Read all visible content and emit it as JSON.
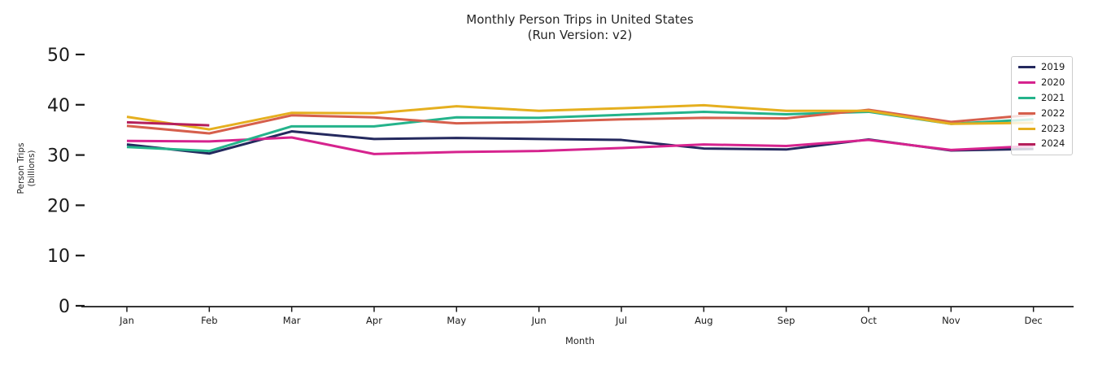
{
  "title": {
    "line1": "Monthly Person Trips in United States",
    "line2": "(Run Version: v2)"
  },
  "axes": {
    "xlabel": "Month",
    "ylabel_line1": "Person Trips",
    "ylabel_line2": "(billions)",
    "y_ticks": [
      0,
      10,
      20,
      30,
      40,
      50
    ],
    "x_ticks": [
      "Jan",
      "Feb",
      "Mar",
      "Apr",
      "May",
      "Jun",
      "Jul",
      "Aug",
      "Sep",
      "Oct",
      "Nov",
      "Dec"
    ]
  },
  "legend": {
    "position": "upper right",
    "items": [
      {
        "label": "2019",
        "color": "#24295e"
      },
      {
        "label": "2020",
        "color": "#d6238e"
      },
      {
        "label": "2021",
        "color": "#24b38b"
      },
      {
        "label": "2022",
        "color": "#d65f4c"
      },
      {
        "label": "2023",
        "color": "#e5af1f"
      },
      {
        "label": "2024",
        "color": "#b51f5b"
      }
    ]
  },
  "chart_data": {
    "type": "line",
    "title": "Monthly Person Trips in United States (Run Version: v2)",
    "xlabel": "Month",
    "ylabel": "Person Trips (billions)",
    "ylim": [
      0,
      50
    ],
    "grid": false,
    "legend_position": "upper right",
    "categories": [
      "Jan",
      "Feb",
      "Mar",
      "Apr",
      "May",
      "Jun",
      "Jul",
      "Aug",
      "Sep",
      "Oct",
      "Nov",
      "Dec"
    ],
    "series": [
      {
        "name": "2019",
        "color": "#24295e",
        "values": [
          32.1,
          30.3,
          34.7,
          33.2,
          33.4,
          33.2,
          33.0,
          31.3,
          31.1,
          33.1,
          30.9,
          31.2
        ]
      },
      {
        "name": "2020",
        "color": "#d6238e",
        "values": [
          32.8,
          32.7,
          33.5,
          30.2,
          30.6,
          30.8,
          31.4,
          32.1,
          31.8,
          33.0,
          31.0,
          31.8
        ]
      },
      {
        "name": "2021",
        "color": "#24b38b",
        "values": [
          31.6,
          30.8,
          35.7,
          35.7,
          37.5,
          37.4,
          38.0,
          38.6,
          38.1,
          38.6,
          36.2,
          37.1
        ]
      },
      {
        "name": "2022",
        "color": "#d65f4c",
        "values": [
          35.8,
          34.3,
          37.9,
          37.5,
          36.3,
          36.6,
          37.1,
          37.4,
          37.3,
          39.0,
          36.6,
          38.0
        ]
      },
      {
        "name": "2023",
        "color": "#e5af1f",
        "values": [
          37.6,
          35.1,
          38.4,
          38.3,
          39.7,
          38.8,
          39.3,
          39.9,
          38.8,
          38.8,
          36.2,
          36.4
        ]
      },
      {
        "name": "2024",
        "color": "#b51f5b",
        "values": [
          36.5,
          35.9
        ]
      }
    ]
  }
}
